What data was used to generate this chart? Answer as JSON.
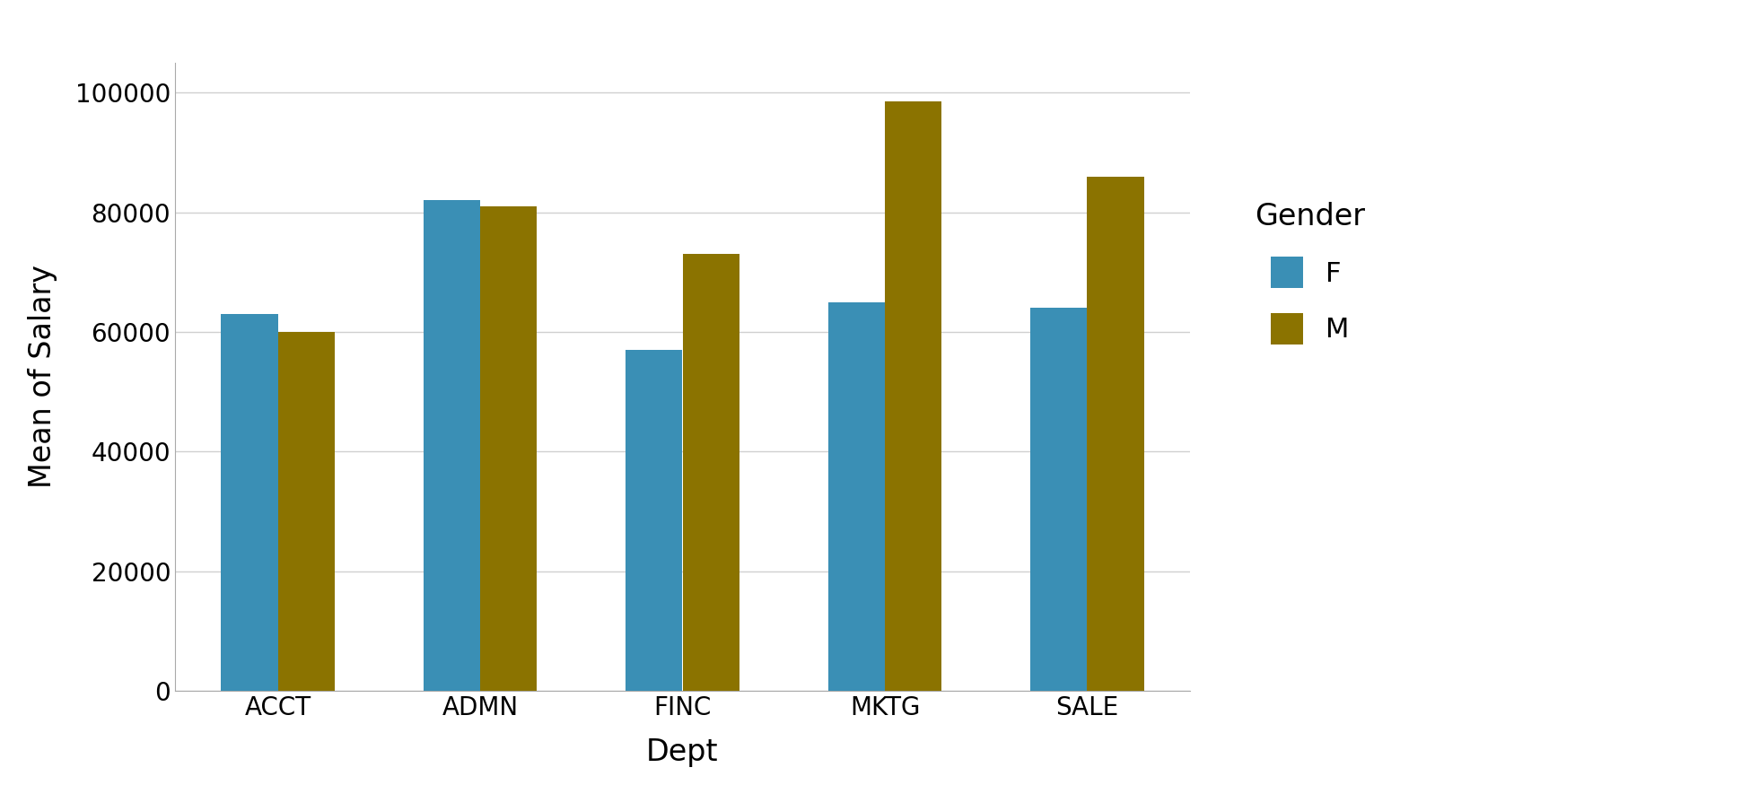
{
  "categories": [
    "ACCT",
    "ADMN",
    "FINC",
    "MKTG",
    "SALE"
  ],
  "values_F": [
    63000,
    82000,
    57000,
    65000,
    64000
  ],
  "values_M": [
    60000,
    81000,
    73000,
    98500,
    86000
  ],
  "color_F": "#3a8fb5",
  "color_M": "#8b7300",
  "xlabel": "Dept",
  "ylabel": "Mean of Salary",
  "ylim": [
    0,
    105000
  ],
  "yticks": [
    0,
    20000,
    40000,
    60000,
    80000,
    100000
  ],
  "legend_title": "Gender",
  "legend_labels": [
    "F",
    "M"
  ],
  "bar_width": 0.28,
  "background_color": "#ffffff",
  "plot_bg_color": "#ffffff",
  "grid_color": "#d0d0d0",
  "xlabel_fontsize": 24,
  "ylabel_fontsize": 24,
  "tick_fontsize": 20,
  "legend_fontsize": 22,
  "legend_title_fontsize": 24
}
